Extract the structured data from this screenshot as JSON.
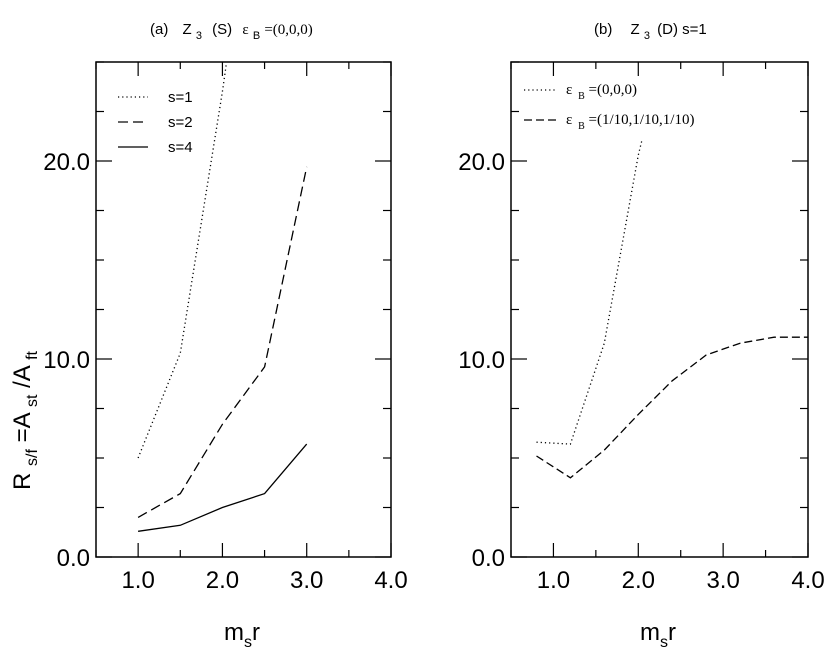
{
  "ylabel_parts": {
    "R": "R",
    "s_f": "s/f",
    "eqA": " =A",
    "st": "st",
    "slashA": " /A",
    "ft": "ft"
  },
  "xlabel_parts": {
    "m": "m",
    "s": "s",
    "r": "r"
  },
  "chart_data": [
    {
      "type": "line",
      "title_parts": {
        "a": "(a)",
        "Z": "Z",
        "sub3": "3",
        "S": "(S)",
        "eps": "ε",
        "subB": "B",
        "val": "=(0,0,0)"
      },
      "xlabel": "m_s r",
      "ylabel": "R_s/f = A_st / A_ft",
      "xlim": [
        0.5,
        4.0
      ],
      "ylim": [
        0.0,
        25.0
      ],
      "xticks": [
        "1.0",
        "2.0",
        "3.0",
        "4.0"
      ],
      "yticks": [
        "0.0",
        "10.0",
        "20.0"
      ],
      "legend": [
        {
          "label": "s=1",
          "dash": "dotted"
        },
        {
          "label": "s=2",
          "dash": "dashed"
        },
        {
          "label": "s=4",
          "dash": "solid"
        }
      ],
      "series": [
        {
          "name": "s=1",
          "x": [
            1.0,
            1.5,
            2.0,
            2.05
          ],
          "y": [
            5.0,
            10.3,
            23.5,
            25.0
          ]
        },
        {
          "name": "s=2",
          "x": [
            1.0,
            1.5,
            2.0,
            2.5,
            3.0
          ],
          "y": [
            2.0,
            3.2,
            6.7,
            9.6,
            19.7
          ]
        },
        {
          "name": "s=4",
          "x": [
            1.0,
            1.5,
            2.0,
            2.5,
            3.0
          ],
          "y": [
            1.3,
            1.6,
            2.5,
            3.2,
            5.7
          ]
        }
      ]
    },
    {
      "type": "line",
      "title_parts": {
        "b": "(b)",
        "Z": "Z",
        "sub3": "3",
        "rest": "(D) s=1"
      },
      "xlabel": "m_s r",
      "xlim": [
        0.5,
        4.0
      ],
      "ylim": [
        0.0,
        25.0
      ],
      "xticks": [
        "1.0",
        "2.0",
        "3.0",
        "4.0"
      ],
      "yticks": [
        "0.0",
        "10.0",
        "20.0"
      ],
      "legend": [
        {
          "eps": "ε",
          "sub": "B",
          "val": "=(0,0,0)",
          "dash": "dotted"
        },
        {
          "eps": "ε",
          "sub": "B",
          "val": "=(1/10,1/10,1/10)",
          "dash": "dashed"
        }
      ],
      "series": [
        {
          "name": "εB=(0,0,0)",
          "x": [
            0.8,
            1.2,
            1.6,
            2.0,
            2.04
          ],
          "y": [
            5.8,
            5.7,
            10.8,
            20.3,
            21.0
          ]
        },
        {
          "name": "εB=(1/10,1/10,1/10)",
          "x": [
            0.8,
            1.2,
            1.6,
            2.0,
            2.4,
            2.8,
            3.2,
            3.6,
            4.0
          ],
          "y": [
            5.1,
            4.0,
            5.4,
            7.2,
            8.9,
            10.2,
            10.8,
            11.1,
            11.1
          ]
        }
      ]
    }
  ]
}
